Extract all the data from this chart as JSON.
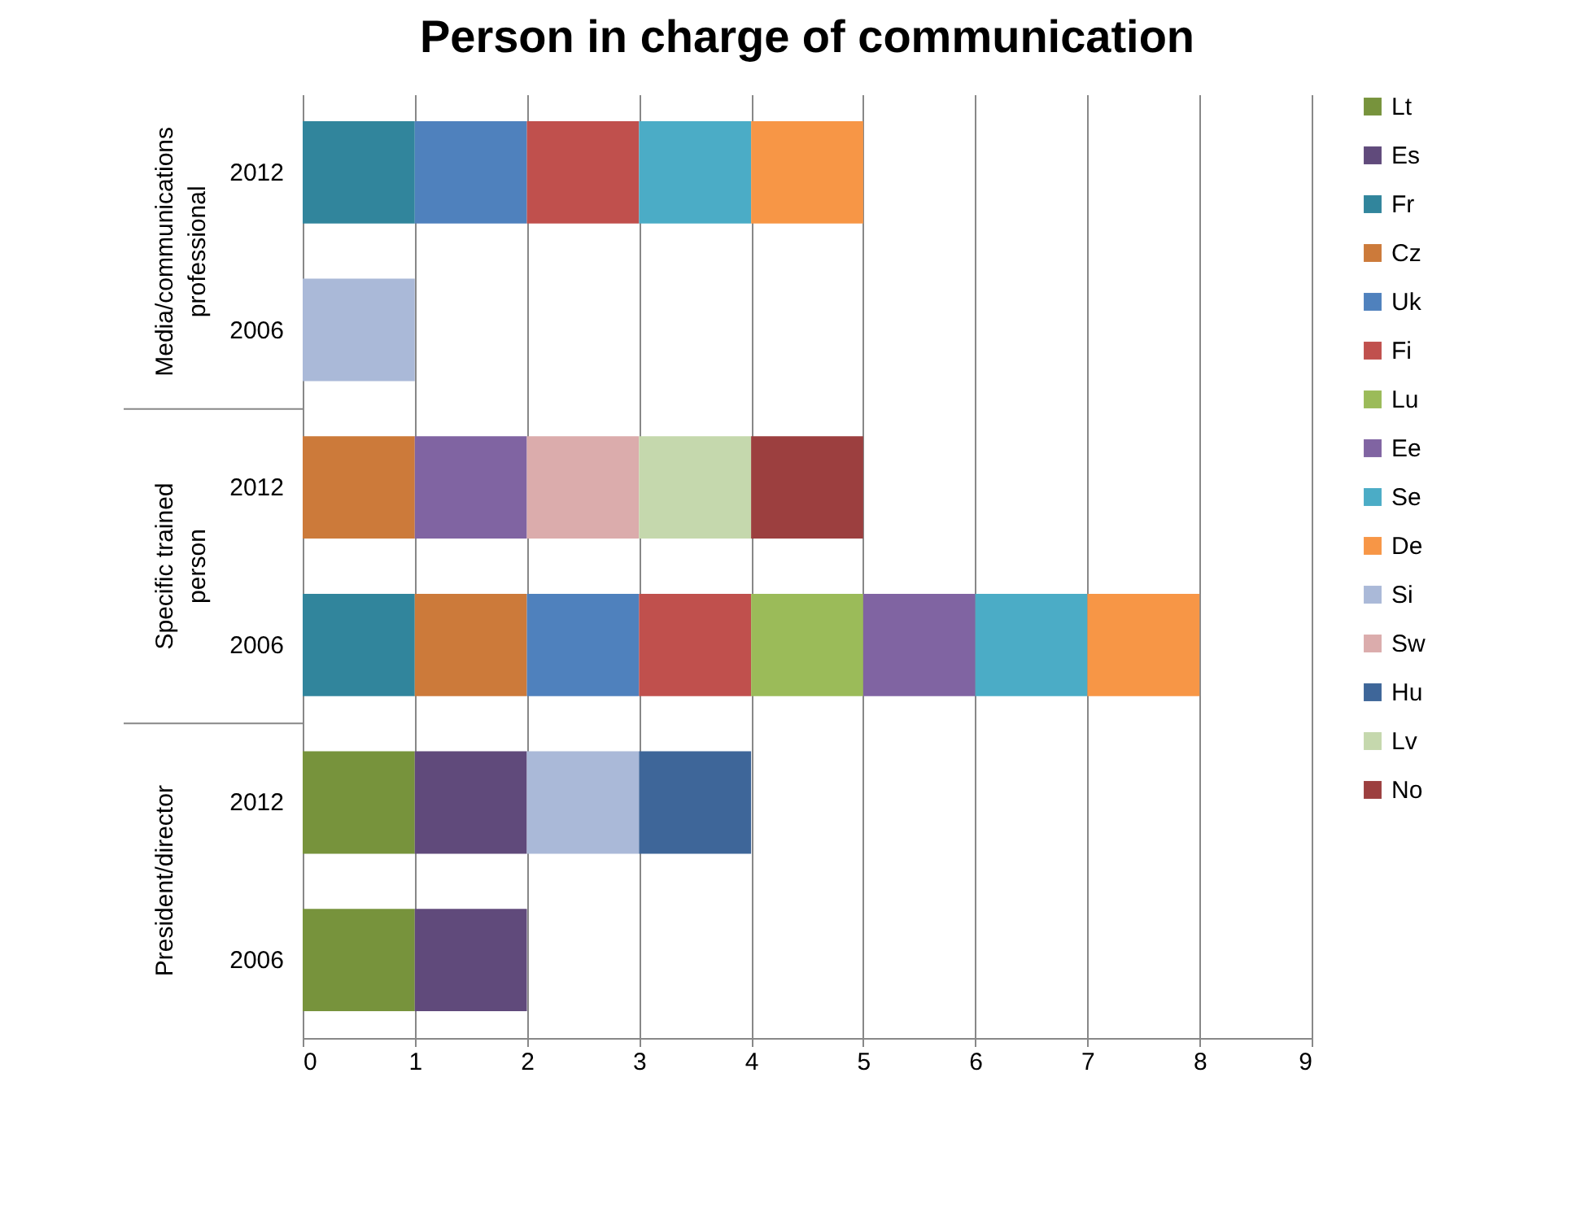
{
  "chart_data": {
    "type": "bar",
    "orientation": "horizontal",
    "stacked": true,
    "title": "Person in charge of communication",
    "categories": [
      "2012",
      "2006",
      "2012",
      "2006",
      "2012",
      "2006"
    ],
    "annotations": [
      "Media/communications professional",
      "Specific trained person",
      "President/director"
    ],
    "xlim": [
      0,
      9
    ],
    "xticks": [
      0,
      1,
      2,
      3,
      4,
      5,
      6,
      7,
      8,
      9
    ],
    "grid": "x",
    "legend": "right",
    "series": [
      {
        "name": "Lt",
        "color": "#77933c",
        "values": [
          null,
          null,
          null,
          null,
          1,
          1
        ]
      },
      {
        "name": "Es",
        "color": "#604a7b",
        "values": [
          null,
          null,
          null,
          null,
          1,
          1
        ]
      },
      {
        "name": "Fr",
        "color": "#31859c",
        "values": [
          1,
          null,
          null,
          1,
          null,
          null
        ]
      },
      {
        "name": "Cz",
        "color": "#cc7a3a",
        "values": [
          null,
          null,
          1,
          1,
          null,
          null
        ]
      },
      {
        "name": "Uk",
        "color": "#4f81bd",
        "values": [
          1,
          null,
          null,
          1,
          null,
          null
        ]
      },
      {
        "name": "Fi",
        "color": "#c0504d",
        "values": [
          1,
          null,
          null,
          1,
          null,
          null
        ]
      },
      {
        "name": "Lu",
        "color": "#9bbb59",
        "values": [
          null,
          null,
          null,
          1,
          null,
          null
        ]
      },
      {
        "name": "Ee",
        "color": "#8064a2",
        "values": [
          null,
          null,
          1,
          1,
          null,
          null
        ]
      },
      {
        "name": "Se",
        "color": "#4bacc6",
        "values": [
          1,
          null,
          null,
          1,
          null,
          null
        ]
      },
      {
        "name": "De",
        "color": "#f79646",
        "values": [
          1,
          null,
          null,
          1,
          null,
          null
        ]
      },
      {
        "name": "Si",
        "color": "#aab9d8",
        "values": [
          null,
          1,
          null,
          null,
          1,
          null
        ]
      },
      {
        "name": "Sw",
        "color": "#dbacac",
        "values": [
          null,
          null,
          1,
          null,
          null,
          null
        ]
      },
      {
        "name": "Hu",
        "color": "#3e6699",
        "values": [
          null,
          null,
          null,
          null,
          1,
          null
        ]
      },
      {
        "name": "Lv",
        "color": "#c5d8ad",
        "values": [
          null,
          null,
          1,
          null,
          null,
          null
        ]
      },
      {
        "name": "No",
        "color": "#9c3f3f",
        "values": [
          null,
          null,
          1,
          null,
          null,
          null
        ]
      }
    ]
  }
}
